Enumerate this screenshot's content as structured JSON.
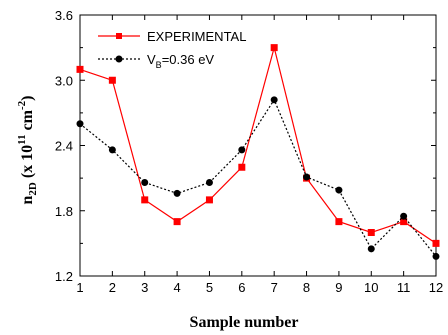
{
  "chart_data": {
    "type": "line",
    "xlabel": "Sample number",
    "ylabel_main": "n",
    "ylabel_sub": "2D",
    "ylabel_rest": " (x 10",
    "ylabel_sup1": "11",
    "ylabel_unit": " cm",
    "ylabel_sup2": "-2",
    "ylabel_close": ")",
    "xlim": [
      1,
      12
    ],
    "ylim": [
      1.2,
      3.6
    ],
    "x_ticks": [
      1,
      2,
      3,
      4,
      5,
      6,
      7,
      8,
      9,
      10,
      11,
      12
    ],
    "y_ticks": [
      "1.2",
      "1.8",
      "2.4",
      "3.0",
      "3.6"
    ],
    "legend_position": "top-left",
    "grid": false,
    "series": [
      {
        "name": "EXPERIMENTAL",
        "color": "#ff0000",
        "marker": "square",
        "line": "solid",
        "x": [
          1,
          2,
          3,
          4,
          5,
          6,
          7,
          8,
          9,
          10,
          11,
          12
        ],
        "values": [
          3.1,
          3.0,
          1.9,
          1.7,
          1.9,
          2.2,
          3.3,
          2.1,
          1.7,
          1.6,
          1.7,
          1.5
        ]
      },
      {
        "name_main": "V",
        "name_sub": "B",
        "name_rest": "=0.36 eV",
        "color": "#000000",
        "marker": "circle",
        "line": "dotted",
        "x": [
          1,
          2,
          3,
          4,
          5,
          6,
          7,
          8,
          9,
          10,
          11,
          12
        ],
        "values": [
          2.6,
          2.36,
          2.06,
          1.96,
          2.06,
          2.36,
          2.82,
          2.11,
          1.99,
          1.45,
          1.75,
          1.38
        ]
      }
    ]
  }
}
